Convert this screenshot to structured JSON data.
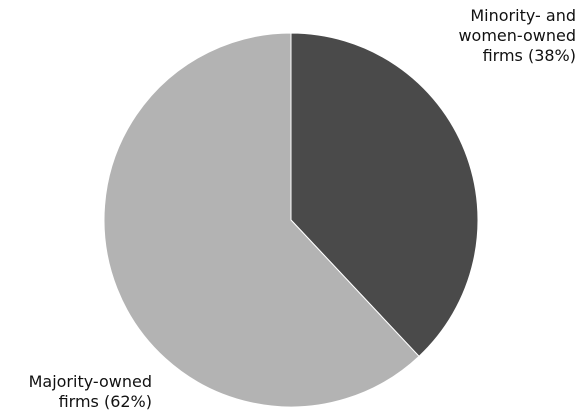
{
  "chart_data": {
    "type": "pie",
    "title": "",
    "slices": [
      {
        "label_lines": [
          "Minority- and",
          "women-owned",
          "firms (38%)"
        ],
        "value": 38,
        "color": "#4a4a4a"
      },
      {
        "label_lines": [
          "Majority-owned",
          "firms (62%)"
        ],
        "value": 62,
        "color": "#b3b3b3"
      }
    ]
  }
}
